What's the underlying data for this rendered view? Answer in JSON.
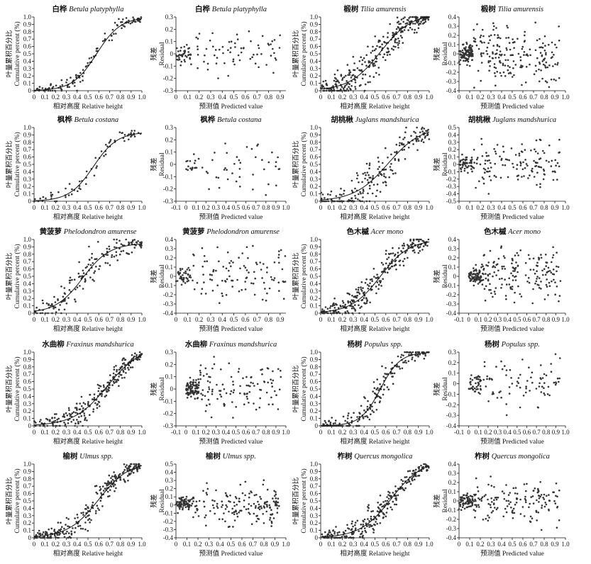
{
  "chart_data": [
    {
      "id": "birch-cum",
      "type": "scatter",
      "title_cn": "白桦",
      "title_latin": "Betula platyphylla",
      "xlabel": "相对高度 Relative height",
      "ylabel_cn": "叶量累积百分比",
      "ylabel_en": "Cumulative percent (%)",
      "xticks": [
        "0",
        "0.1",
        "0.2",
        "0.3",
        "0.4",
        "0.5",
        "0.6",
        "0.7",
        "0.8",
        "0.9",
        "1.0"
      ],
      "yticks": [
        "0",
        "0.1",
        "0.2",
        "0.3",
        "0.4",
        "0.5",
        "0.6",
        "0.7",
        "0.8",
        "0.9",
        "1.0"
      ],
      "xlim": [
        0,
        1
      ],
      "ylim": [
        0,
        1
      ],
      "curve": {
        "k": 9,
        "x0": 0.58,
        "top": 1.0
      },
      "spread": 0.06,
      "n": 120,
      "seed": 1
    },
    {
      "id": "birch-res",
      "type": "scatter",
      "title_cn": "白桦",
      "title_latin": "Betula platyphylla",
      "xlabel": "预测值 Predicted value",
      "ylabel_cn": "残差",
      "ylabel_en": "Residual",
      "xticks": [
        "0",
        "0.1",
        "0.2",
        "0.3",
        "0.4",
        "0.5",
        "0.6",
        "0.7",
        "0.8",
        "0.9"
      ],
      "yticks": [
        "-0.3",
        "-0.2",
        "-0.1",
        "0",
        "0.1",
        "0.2",
        "0.3"
      ],
      "xlim": [
        0,
        0.95
      ],
      "ylim": [
        -0.3,
        0.3
      ],
      "spread": 0.09,
      "n": 110,
      "seed": 2
    },
    {
      "id": "linden-cum",
      "type": "scatter",
      "title_cn": "椴树",
      "title_latin": "Tilia amurensis",
      "xlabel": "相对高度 Relative height",
      "ylabel_cn": "叶量累积百分比",
      "ylabel_en": "Cumulative percent (%)",
      "xticks": [
        "0",
        "0.1",
        "0.2",
        "0.3",
        "0.4",
        "0.5",
        "0.6",
        "0.7",
        "0.8",
        "0.9",
        "1.0"
      ],
      "yticks": [
        "0",
        "0.1",
        "0.2",
        "0.3",
        "0.4",
        "0.5",
        "0.6",
        "0.7",
        "0.8",
        "0.9",
        "1.0"
      ],
      "xlim": [
        0,
        1
      ],
      "ylim": [
        0,
        1
      ],
      "curve": {
        "k": 7,
        "x0": 0.55,
        "top": 1.05
      },
      "spread": 0.12,
      "n": 320,
      "seed": 3
    },
    {
      "id": "linden-res",
      "type": "scatter",
      "title_cn": "椴树",
      "title_latin": "Tilia amurensis",
      "xlabel": "预测值 Predicted value",
      "ylabel_cn": "残差",
      "ylabel_en": "Residual",
      "xticks": [
        "0",
        "0.1",
        "0.2",
        "0.3",
        "0.4",
        "0.5",
        "0.6",
        "0.7",
        "0.8",
        "0.9",
        "1.0"
      ],
      "yticks": [
        "-0.4",
        "-0.3",
        "-0.2",
        "-0.1",
        "0",
        "0.1",
        "0.2",
        "0.3",
        "0.4"
      ],
      "xlim": [
        0,
        1
      ],
      "ylim": [
        -0.4,
        0.4
      ],
      "spread": 0.13,
      "n": 300,
      "seed": 4
    },
    {
      "id": "costata-cum",
      "type": "scatter",
      "title_cn": "枫桦",
      "title_latin": "Betula costana",
      "xlabel": "相对高度 Relative height",
      "ylabel_cn": "叶量累积百分比",
      "ylabel_en": "Cumulative percent (%)",
      "xticks": [
        "0",
        "0.1",
        "0.2",
        "0.3",
        "0.4",
        "0.5",
        "0.6",
        "0.7",
        "0.8",
        "0.9",
        "1.0"
      ],
      "yticks": [
        "0",
        "0.1",
        "0.2",
        "0.3",
        "0.4",
        "0.5",
        "0.6",
        "0.7",
        "0.8",
        "0.9",
        "1.0"
      ],
      "xlim": [
        0,
        1
      ],
      "ylim": [
        0,
        1
      ],
      "curve": {
        "k": 9,
        "x0": 0.55,
        "top": 0.94
      },
      "spread": 0.06,
      "n": 70,
      "seed": 5
    },
    {
      "id": "costata-res",
      "type": "scatter",
      "title_cn": "枫桦",
      "title_latin": "Betula costana",
      "xlabel": "预测值 Predicted value",
      "ylabel_cn": "残差",
      "ylabel_en": "Residual",
      "xticks": [
        "-0.1",
        "0",
        "0.1",
        "0.2",
        "0.3",
        "0.4",
        "0.5",
        "0.6",
        "0.7",
        "0.8",
        "0.9",
        "1.0"
      ],
      "yticks": [
        "-0.3",
        "-0.2",
        "-0.1",
        "0",
        "0.1",
        "0.2",
        "0.3"
      ],
      "xlim": [
        -0.1,
        1
      ],
      "ylim": [
        -0.3,
        0.3
      ],
      "spread": 0.09,
      "n": 60,
      "seed": 6
    },
    {
      "id": "walnut-cum",
      "type": "scatter",
      "title_cn": "胡桃楸",
      "title_latin": "Juglans mandshurica",
      "xlabel": "相对高度 Relative height",
      "ylabel_cn": "叶量累积百分比",
      "ylabel_en": "Cumulative percent (%)",
      "xticks": [
        "0",
        "0.1",
        "0.2",
        "0.3",
        "0.4",
        "0.5",
        "0.6",
        "0.7",
        "0.8",
        "0.9",
        "1.0"
      ],
      "yticks": [
        "0",
        "0.1",
        "0.2",
        "0.3",
        "0.4",
        "0.5",
        "0.6",
        "0.7",
        "0.8",
        "0.9",
        "1.0"
      ],
      "xlim": [
        0,
        1
      ],
      "ylim": [
        0,
        1
      ],
      "curve": {
        "k": 6.5,
        "x0": 0.62,
        "top": 1.02
      },
      "spread": 0.14,
      "n": 200,
      "seed": 7
    },
    {
      "id": "walnut-res",
      "type": "scatter",
      "title_cn": "胡桃楸",
      "title_latin": "Juglans mandshurica",
      "xlabel": "预测值 Predicted value",
      "ylabel_cn": "残差",
      "ylabel_en": "Residual",
      "xticks": [
        "0",
        "0.1",
        "0.2",
        "0.3",
        "0.4",
        "0.5",
        "0.6",
        "0.7",
        "0.8",
        "0.9",
        "1.0"
      ],
      "yticks": [
        "-0.5",
        "-0.4",
        "-0.3",
        "-0.2",
        "-0.1",
        "0",
        "0.1",
        "0.2",
        "0.3",
        "0.4",
        "0.5"
      ],
      "xlim": [
        0,
        1
      ],
      "ylim": [
        -0.5,
        0.5
      ],
      "spread": 0.14,
      "n": 180,
      "seed": 8
    },
    {
      "id": "cork-cum",
      "type": "scatter",
      "title_cn": "黄菠萝",
      "title_latin": "Phelodondron amurense",
      "xlabel": "相对高度 Relative height",
      "ylabel_cn": "叶量累积百分比",
      "ylabel_en": "Cumulative percent (%)",
      "xticks": [
        "0",
        "0.1",
        "0.2",
        "0.3",
        "0.4",
        "0.5",
        "0.6",
        "0.7",
        "0.8",
        "0.9",
        "1.0"
      ],
      "yticks": [
        "0",
        "0.1",
        "0.2",
        "0.3",
        "0.4",
        "0.5",
        "0.6",
        "0.7",
        "0.8",
        "0.9",
        "1.0"
      ],
      "xlim": [
        0,
        1
      ],
      "ylim": [
        0,
        1
      ],
      "curve": {
        "k": 8,
        "x0": 0.45,
        "top": 0.95
      },
      "spread": 0.11,
      "n": 160,
      "seed": 9
    },
    {
      "id": "cork-res",
      "type": "scatter",
      "title_cn": "黄菠萝",
      "title_latin": "Phelodondron amurense",
      "xlabel": "预测值 Predicted value",
      "ylabel_cn": "残差",
      "ylabel_en": "Residual",
      "xticks": [
        "0",
        "0.1",
        "0.2",
        "0.3",
        "0.4",
        "0.5",
        "0.6",
        "0.7",
        "0.8",
        "0.9"
      ],
      "yticks": [
        "-0.4",
        "-0.3",
        "-0.2",
        "-0.1",
        "0",
        "0.1",
        "0.2",
        "0.3",
        "0.4"
      ],
      "xlim": [
        0,
        0.95
      ],
      "ylim": [
        -0.4,
        0.4
      ],
      "spread": 0.13,
      "n": 140,
      "seed": 10
    },
    {
      "id": "maple-cum",
      "type": "scatter",
      "title_cn": "色木槭",
      "title_latin": "Acer mono",
      "xlabel": "相对高度 Relative height",
      "ylabel_cn": "叶量累积百分比",
      "ylabel_en": "Cumulative percent (%)",
      "xticks": [
        "0",
        "0.1",
        "0.2",
        "0.3",
        "0.4",
        "0.5",
        "0.6",
        "0.7",
        "0.8",
        "0.9",
        "1.0"
      ],
      "yticks": [
        "0",
        "0.1",
        "0.2",
        "0.3",
        "0.4",
        "0.5",
        "0.6",
        "0.7",
        "0.8",
        "0.9",
        "1.0"
      ],
      "xlim": [
        0,
        1
      ],
      "ylim": [
        0,
        1
      ],
      "curve": {
        "k": 7.5,
        "x0": 0.55,
        "top": 1.0
      },
      "spread": 0.11,
      "n": 260,
      "seed": 11
    },
    {
      "id": "maple-res",
      "type": "scatter",
      "title_cn": "色木槭",
      "title_latin": "Acer mono",
      "xlabel": "预测值 Predicted value",
      "ylabel_cn": "残差",
      "ylabel_en": "Residual",
      "xticks": [
        "-0.1",
        "0",
        "0.1",
        "0.2",
        "0.3",
        "0.4",
        "0.5",
        "0.6",
        "0.7",
        "0.8",
        "0.9",
        "1.0"
      ],
      "yticks": [
        "-0.4",
        "-0.3",
        "-0.2",
        "-0.1",
        "0",
        "0.1",
        "0.2",
        "0.3",
        "0.4"
      ],
      "xlim": [
        -0.1,
        1
      ],
      "ylim": [
        -0.4,
        0.4
      ],
      "spread": 0.13,
      "n": 240,
      "seed": 12
    },
    {
      "id": "ash-cum",
      "type": "scatter",
      "title_cn": "水曲柳",
      "title_latin": "Fraxinus mandshurica",
      "xlabel": "相对高度 Relative height",
      "ylabel_cn": "叶量累积百分比",
      "ylabel_en": "Cumulative percent (%)",
      "xticks": [
        "0",
        "0.1",
        "0.2",
        "0.3",
        "0.4",
        "0.5",
        "0.6",
        "0.7",
        "0.8",
        "0.9",
        "1.0"
      ],
      "yticks": [
        "0",
        "0.1",
        "0.2",
        "0.3",
        "0.4",
        "0.5",
        "0.6",
        "0.7",
        "0.8",
        "0.9",
        "1.0"
      ],
      "xlim": [
        0,
        1
      ],
      "ylim": [
        0,
        1
      ],
      "curve": {
        "k": 6.5,
        "x0": 0.68,
        "top": 1.08
      },
      "spread": 0.09,
      "n": 240,
      "seed": 13
    },
    {
      "id": "ash-res",
      "type": "scatter",
      "title_cn": "水曲柳",
      "title_latin": "Fraxinus mandshurica",
      "xlabel": "预测值 Predicted value",
      "ylabel_cn": "残差",
      "ylabel_en": "Residual",
      "xticks": [
        "-0.1",
        "0",
        "0.1",
        "0.2",
        "0.3",
        "0.4",
        "0.5",
        "0.6",
        "0.7",
        "0.8",
        "0.9",
        "1.0"
      ],
      "yticks": [
        "-0.3",
        "-0.2",
        "-0.1",
        "0",
        "0.1",
        "0.2",
        "0.3"
      ],
      "xlim": [
        -0.1,
        1
      ],
      "ylim": [
        -0.3,
        0.3
      ],
      "spread": 0.09,
      "n": 200,
      "seed": 14
    },
    {
      "id": "poplar-cum",
      "type": "scatter",
      "title_cn": "杨树",
      "title_latin": "Populus spp.",
      "xlabel": "相对高度 Relative height",
      "ylabel_cn": "叶量累积百分比",
      "ylabel_en": "Cumulative percent (%)",
      "xticks": [
        "0",
        "0.1",
        "0.2",
        "0.3",
        "0.4",
        "0.5",
        "0.6",
        "0.7",
        "0.8",
        "0.9",
        "1.0"
      ],
      "yticks": [
        "0",
        "0.1",
        "0.2",
        "0.3",
        "0.4",
        "0.5",
        "0.6",
        "0.7",
        "0.8",
        "0.9",
        "1.0"
      ],
      "xlim": [
        0,
        1
      ],
      "ylim": [
        0,
        1
      ],
      "curve": {
        "k": 11,
        "x0": 0.55,
        "top": 1.0
      },
      "spread": 0.1,
      "n": 200,
      "seed": 15
    },
    {
      "id": "poplar-res",
      "type": "scatter",
      "title_cn": "杨树",
      "title_latin": "Populus spp.",
      "xlabel": "预测值 Predicted value",
      "ylabel_cn": "残差",
      "ylabel_en": "Residual",
      "xticks": [
        "-0.1",
        "0",
        "0.1",
        "0.2",
        "0.3",
        "0.4",
        "0.5",
        "0.6",
        "0.7",
        "0.8",
        "0.9",
        "1.0"
      ],
      "yticks": [
        "-0.4",
        "-0.3",
        "-0.2",
        "-0.1",
        "0",
        "0.1",
        "0.2",
        "0.3"
      ],
      "xlim": [
        -0.1,
        1
      ],
      "ylim": [
        -0.4,
        0.3
      ],
      "spread": 0.12,
      "n": 120,
      "seed": 16
    },
    {
      "id": "elm-cum",
      "type": "scatter",
      "title_cn": "榆树",
      "title_latin": "Ulmus spp.",
      "xlabel": "相对高度 Relative height",
      "ylabel_cn": "叶量累积百分比",
      "ylabel_en": "Cumulative percent (%)",
      "xticks": [
        "0",
        "0.1",
        "0.2",
        "0.3",
        "0.4",
        "0.5",
        "0.6",
        "0.7",
        "0.8",
        "0.9",
        "1.0"
      ],
      "yticks": [
        "0",
        "0.1",
        "0.2",
        "0.3",
        "0.4",
        "0.5",
        "0.6",
        "0.7",
        "0.8",
        "0.9",
        "1.0"
      ],
      "xlim": [
        0,
        1
      ],
      "ylim": [
        0,
        1
      ],
      "curve": {
        "k": 7,
        "x0": 0.6,
        "top": 1.04
      },
      "spread": 0.09,
      "n": 260,
      "seed": 17
    },
    {
      "id": "elm-res",
      "type": "scatter",
      "title_cn": "榆树",
      "title_latin": "Ulmus spp.",
      "xlabel": "预测值 Predicted value",
      "ylabel_cn": "残差",
      "ylabel_en": "Residual",
      "xticks": [
        "0",
        "0.1",
        "0.2",
        "0.3",
        "0.4",
        "0.5",
        "0.6",
        "0.7",
        "0.8",
        "0.9",
        "1.0"
      ],
      "yticks": [
        "-0.4",
        "-0.3",
        "-0.2",
        "-0.1",
        "0",
        "0.1",
        "0.2",
        "0.3",
        "0.4",
        "0.5"
      ],
      "xlim": [
        0,
        1
      ],
      "ylim": [
        -0.4,
        0.5
      ],
      "spread": 0.1,
      "n": 240,
      "seed": 18
    },
    {
      "id": "oak-cum",
      "type": "scatter",
      "title_cn": "柞树",
      "title_latin": "Quercus mongolica",
      "xlabel": "相对高度 Relative height",
      "ylabel_cn": "叶量累积百分比",
      "ylabel_en": "Cumulative percent (%)",
      "xticks": [
        "0",
        "0.1",
        "0.2",
        "0.3",
        "0.4",
        "0.5",
        "0.6",
        "0.7",
        "0.8",
        "0.9",
        "1.0"
      ],
      "yticks": [
        "0",
        "0.1",
        "0.2",
        "0.3",
        "0.4",
        "0.5",
        "0.6",
        "0.7",
        "0.8",
        "0.9",
        "1.0"
      ],
      "xlim": [
        0,
        1
      ],
      "ylim": [
        0,
        1
      ],
      "curve": {
        "k": 7,
        "x0": 0.65,
        "top": 1.06
      },
      "spread": 0.09,
      "n": 260,
      "seed": 19
    },
    {
      "id": "oak-res",
      "type": "scatter",
      "title_cn": "柞树",
      "title_latin": "Quercus mongolica",
      "xlabel": "预测值 Predicted value",
      "ylabel_cn": "残差",
      "ylabel_en": "Residual",
      "xticks": [
        "0",
        "0.1",
        "0.2",
        "0.3",
        "0.4",
        "0.5",
        "0.6",
        "0.7",
        "0.8",
        "0.9",
        "1.0"
      ],
      "yticks": [
        "-0.4",
        "-0.3",
        "-0.2",
        "-0.1",
        "0",
        "0.1",
        "0.2",
        "0.3",
        "0.4"
      ],
      "xlim": [
        0,
        1
      ],
      "ylim": [
        -0.4,
        0.4
      ],
      "spread": 0.1,
      "n": 220,
      "seed": 20
    }
  ]
}
